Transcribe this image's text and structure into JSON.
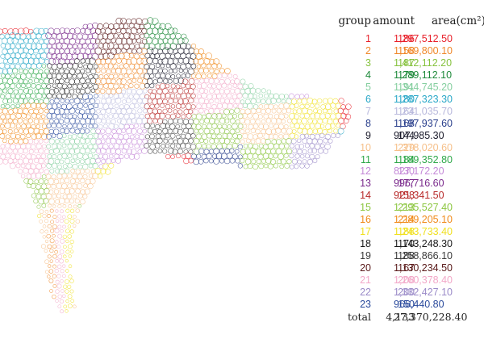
{
  "headers": {
    "group": "group",
    "amount": "amount",
    "area": "area(cm²)"
  },
  "rows": [
    {
      "group": "1",
      "amount": "186",
      "area": "1,297,512.50",
      "color": "#e8202a"
    },
    {
      "group": "2",
      "amount": "158",
      "area": "1,169,800.10",
      "color": "#f0882a"
    },
    {
      "group": "3",
      "amount": "187",
      "area": "1,412,112.20",
      "color": "#86c23e"
    },
    {
      "group": "4",
      "amount": "179",
      "area": "1,289,112.10",
      "color": "#1f8a3b"
    },
    {
      "group": "5",
      "amount": "191",
      "area": "1,344,745.20",
      "color": "#86cfa0"
    },
    {
      "group": "6",
      "amount": "180",
      "area": "1,287,323.30",
      "color": "#2aa8c8"
    },
    {
      "group": "7",
      "amount": "164",
      "area": "1,231,035.70",
      "color": "#b8b8dc"
    },
    {
      "group": "8",
      "amount": "168",
      "area": "1,197,937.60",
      "color": "#2a3f8c"
    },
    {
      "group": "9",
      "amount": "144",
      "area": "907,985.30",
      "color": "#1a1a2a"
    },
    {
      "group": "10",
      "amount": "229",
      "area": "1,378,020.60",
      "color": "#f6c08a"
    },
    {
      "group": "11",
      "amount": "184",
      "area": "1,189,352.80",
      "color": "#2fa84a"
    },
    {
      "group": "12",
      "amount": "130",
      "area": "827,172.20",
      "color": "#c58ad8"
    },
    {
      "group": "13",
      "amount": "177",
      "area": "996,716.60",
      "color": "#7a2a8c"
    },
    {
      "group": "14",
      "amount": "158",
      "area": "921,341.50",
      "color": "#b82a2a"
    },
    {
      "group": "15",
      "amount": "213",
      "area": "1,295,527.40",
      "color": "#8cc640"
    },
    {
      "group": "16",
      "amount": "214",
      "area": "1,289,205.10",
      "color": "#f08a1a"
    },
    {
      "group": "17",
      "amount": "188",
      "area": "1,243,733.40",
      "color": "#f0e020"
    },
    {
      "group": "18",
      "amount": "170",
      "area": "1,143,248.30",
      "color": "#1a1a1a"
    },
    {
      "group": "19",
      "amount": "188",
      "area": "1,258,866.10",
      "color": "#3a3a3a"
    },
    {
      "group": "20",
      "amount": "167",
      "area": "1,130,234.50",
      "color": "#5a1a1a"
    },
    {
      "group": "21",
      "amount": "208",
      "area": "1,260,378.40",
      "color": "#f2a8c8"
    },
    {
      "group": "22",
      "amount": "200",
      "area": "1,332,427.10",
      "color": "#9a8ac8"
    },
    {
      "group": "23",
      "amount": "150",
      "area": "966,440.80",
      "color": "#2a4a9c"
    }
  ],
  "total": {
    "label": "total",
    "amount": "4,133",
    "area": "27,370,228.40"
  }
}
